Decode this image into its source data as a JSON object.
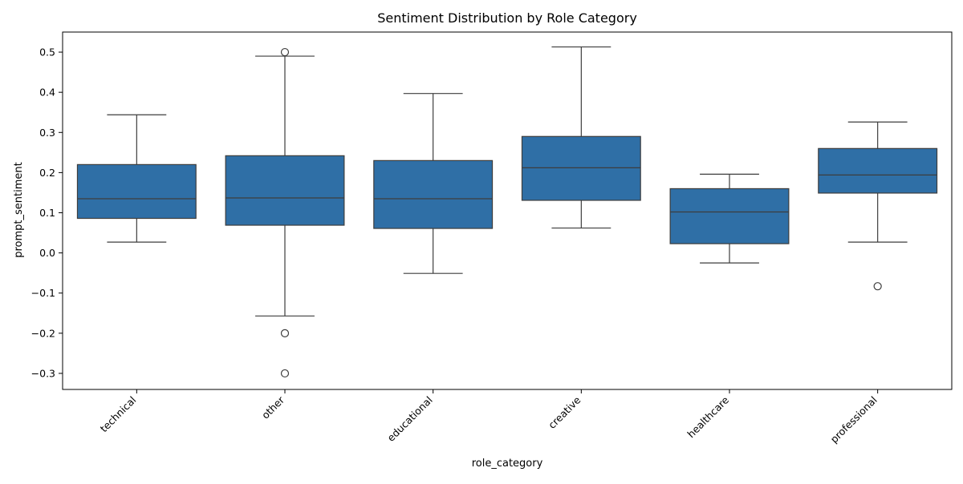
{
  "chart_data": {
    "type": "box",
    "title": "Sentiment Distribution by Role Category",
    "xlabel": "role_category",
    "ylabel": "prompt_sentiment",
    "ylim": [
      -0.34,
      0.55
    ],
    "yticks": [
      {
        "value": -0.3,
        "label": "−0.3"
      },
      {
        "value": -0.2,
        "label": "−0.2"
      },
      {
        "value": -0.1,
        "label": "−0.1"
      },
      {
        "value": 0.0,
        "label": "0.0"
      },
      {
        "value": 0.1,
        "label": "0.1"
      },
      {
        "value": 0.2,
        "label": "0.2"
      },
      {
        "value": 0.3,
        "label": "0.3"
      },
      {
        "value": 0.4,
        "label": "0.4"
      },
      {
        "value": 0.5,
        "label": "0.5"
      }
    ],
    "categories": [
      "technical",
      "other",
      "educational",
      "creative",
      "healthcare",
      "professional"
    ],
    "boxes": [
      {
        "category": "technical",
        "whisker_low": 0.027,
        "q1": 0.086,
        "median": 0.135,
        "q3": 0.22,
        "whisker_high": 0.344,
        "outliers": []
      },
      {
        "category": "other",
        "whisker_low": -0.157,
        "q1": 0.069,
        "median": 0.137,
        "q3": 0.242,
        "whisker_high": 0.49,
        "outliers": [
          0.5,
          -0.2,
          -0.3
        ]
      },
      {
        "category": "educational",
        "whisker_low": -0.051,
        "q1": 0.061,
        "median": 0.135,
        "q3": 0.23,
        "whisker_high": 0.397,
        "outliers": []
      },
      {
        "category": "creative",
        "whisker_low": 0.062,
        "q1": 0.131,
        "median": 0.212,
        "q3": 0.29,
        "whisker_high": 0.513,
        "outliers": []
      },
      {
        "category": "healthcare",
        "whisker_low": -0.025,
        "q1": 0.023,
        "median": 0.102,
        "q3": 0.16,
        "whisker_high": 0.196,
        "outliers": []
      },
      {
        "category": "professional",
        "whisker_low": 0.027,
        "q1": 0.149,
        "median": 0.194,
        "q3": 0.26,
        "whisker_high": 0.326,
        "outliers": [
          -0.083
        ]
      }
    ],
    "grid": false,
    "colors": {
      "box_fill": "#2f6fa6",
      "line": "#3d3d3d"
    }
  }
}
